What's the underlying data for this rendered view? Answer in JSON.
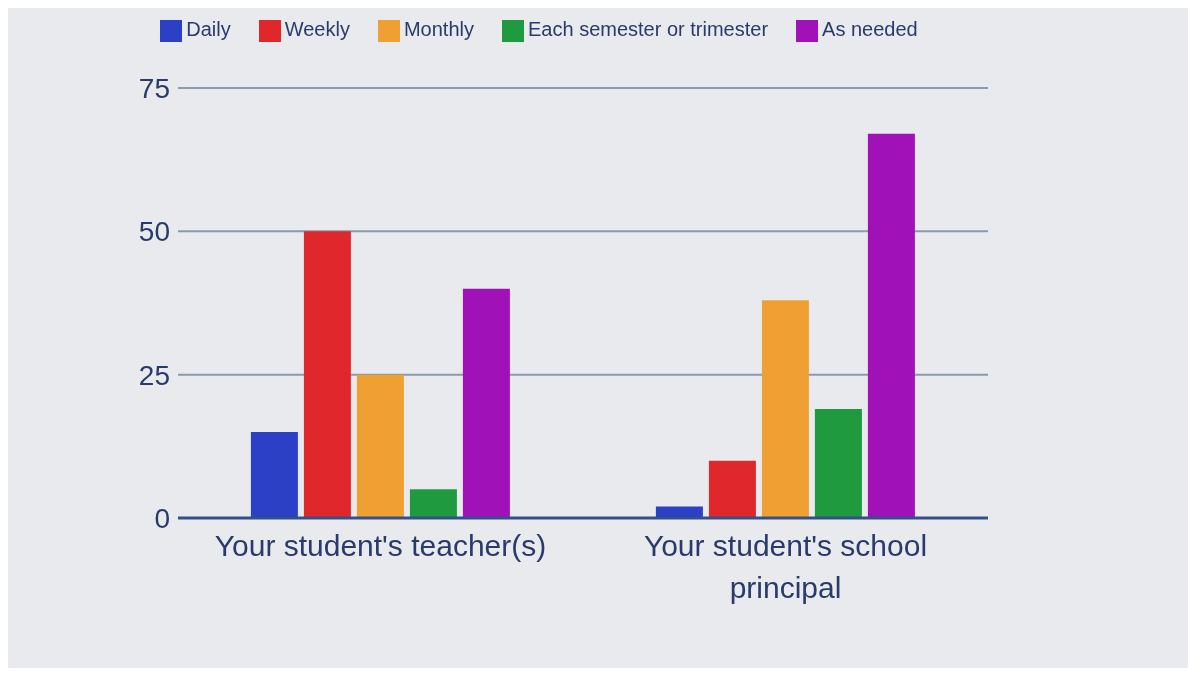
{
  "chart_data": {
    "type": "bar",
    "categories": [
      "Your student's teacher(s)",
      "Your student's school principal"
    ],
    "series": [
      {
        "name": "Daily",
        "color": "#2b40c4",
        "values": [
          15,
          2
        ]
      },
      {
        "name": "Weekly",
        "color": "#e0282c",
        "values": [
          50,
          10
        ]
      },
      {
        "name": "Monthly",
        "color": "#f0a032",
        "values": [
          25,
          38
        ]
      },
      {
        "name": "Each semester or trimester",
        "color": "#1f9a3e",
        "values": [
          5,
          19
        ]
      },
      {
        "name": "As needed",
        "color": "#a012b8",
        "values": [
          40,
          67
        ]
      }
    ],
    "ylim": [
      0,
      75
    ],
    "yticks": [
      0,
      25,
      50,
      75
    ],
    "grid": "y",
    "legend": "top"
  }
}
